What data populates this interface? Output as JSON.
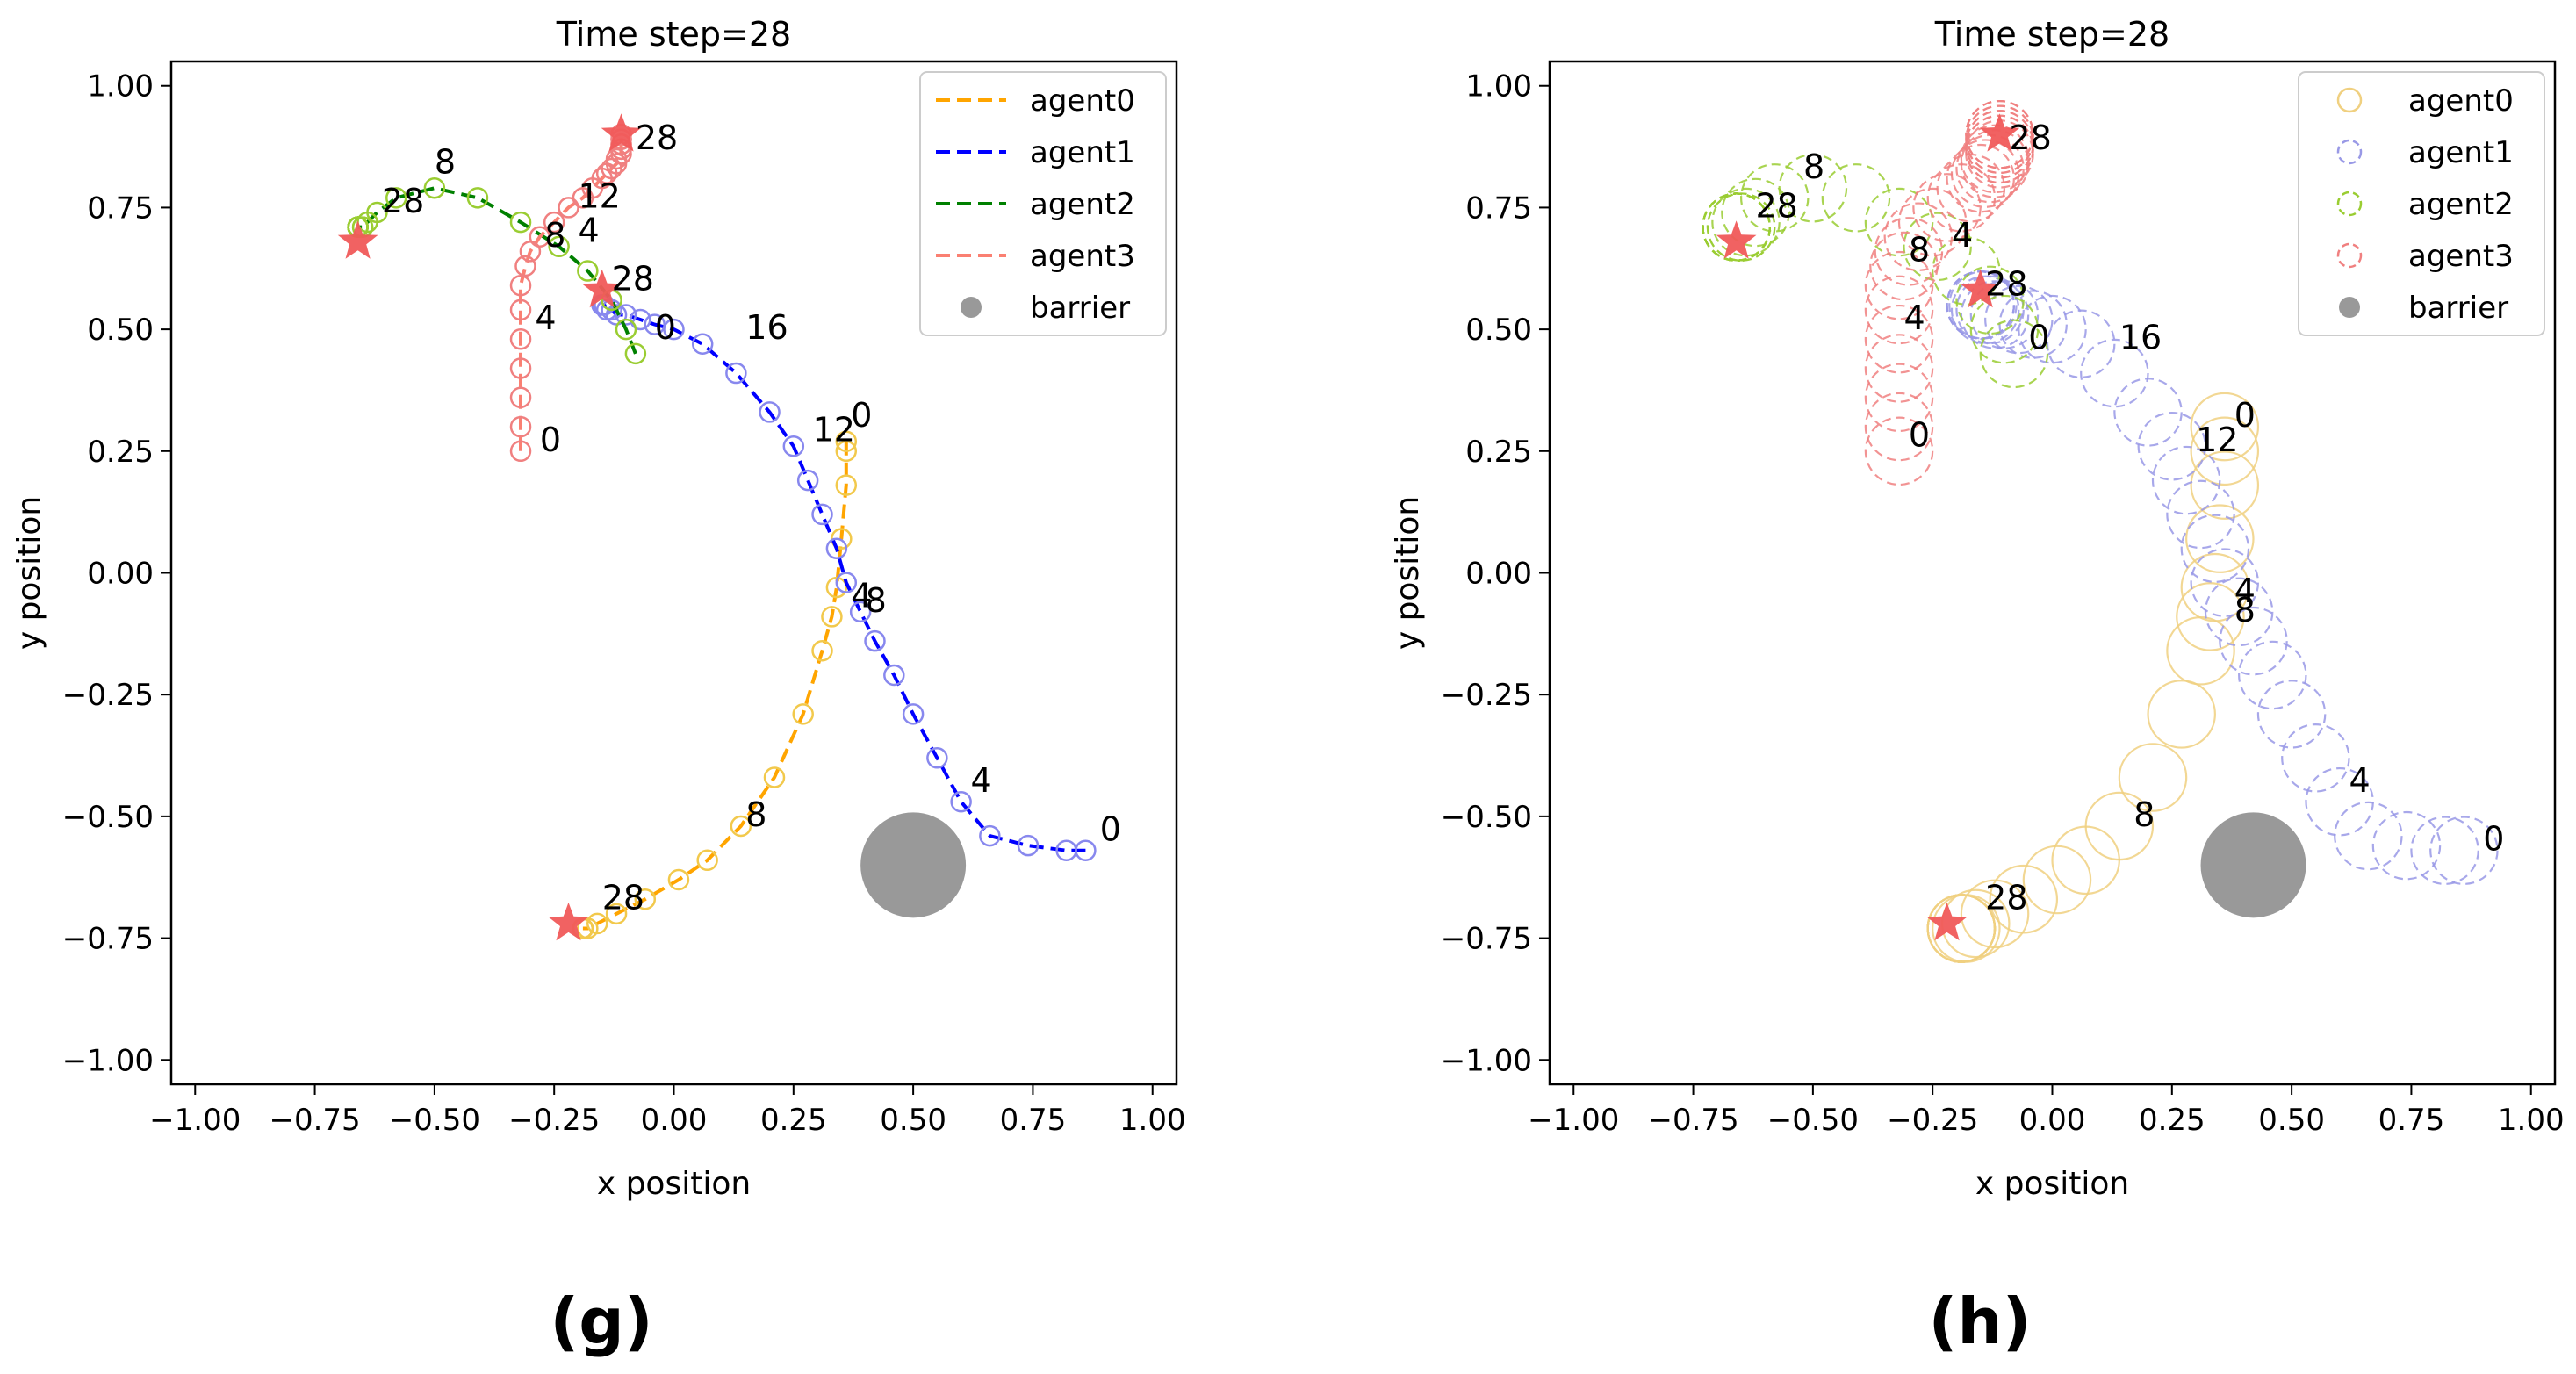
{
  "figure": {
    "captions": [
      "(g)",
      "(h)"
    ]
  },
  "chart_data": [
    {
      "type": "scatter",
      "title": "Time step=28",
      "xlabel": "x position",
      "ylabel": "y position",
      "xlim": [
        -1.05,
        1.05
      ],
      "ylim": [
        -1.05,
        1.05
      ],
      "xticks": [
        -1.0,
        -0.75,
        -0.5,
        -0.25,
        0.0,
        0.25,
        0.5,
        0.75,
        1.0
      ],
      "yticks": [
        -1.0,
        -0.75,
        -0.5,
        -0.25,
        0.0,
        0.25,
        0.5,
        0.75,
        1.0
      ],
      "xtick_labels": [
        "−1.00",
        "−0.75",
        "−0.50",
        "−0.25",
        "0.00",
        "0.25",
        "0.50",
        "0.75",
        "1.00"
      ],
      "ytick_labels": [
        "−1.00",
        "−0.75",
        "−0.50",
        "−0.25",
        "0.00",
        "0.25",
        "0.50",
        "0.75",
        "1.00"
      ],
      "grid": false,
      "legend_position": "top-right",
      "marker_style": "small circles on dashed path",
      "barrier": {
        "name": "barrier",
        "x": 0.5,
        "y": -0.6,
        "radius": 0.11,
        "color": "#999999"
      },
      "series": [
        {
          "name": "agent0",
          "color": "#FFA500",
          "marker_color": "#F2C94C",
          "x": [
            0.36,
            0.36,
            0.36,
            0.35,
            0.34,
            0.33,
            0.31,
            0.27,
            0.21,
            0.14,
            0.07,
            0.01,
            -0.06,
            -0.12,
            -0.16,
            -0.18,
            -0.19,
            -0.19,
            -0.19,
            -0.19,
            -0.19,
            -0.19,
            -0.19,
            -0.19,
            -0.19,
            -0.19,
            -0.19,
            -0.19,
            -0.19
          ],
          "y": [
            0.27,
            0.25,
            0.18,
            0.07,
            -0.03,
            -0.09,
            -0.16,
            -0.29,
            -0.42,
            -0.52,
            -0.59,
            -0.63,
            -0.67,
            -0.7,
            -0.72,
            -0.73,
            -0.73,
            -0.73,
            -0.73,
            -0.73,
            -0.73,
            -0.73,
            -0.73,
            -0.73,
            -0.73,
            -0.73,
            -0.73,
            -0.73,
            -0.73
          ]
        },
        {
          "name": "agent1",
          "color": "#0000FF",
          "marker_color": "#8888EE",
          "x": [
            0.86,
            0.82,
            0.74,
            0.66,
            0.6,
            0.55,
            0.5,
            0.46,
            0.42,
            0.39,
            0.36,
            0.34,
            0.31,
            0.28,
            0.25,
            0.2,
            0.13,
            0.06,
            0.0,
            -0.04,
            -0.07,
            -0.1,
            -0.12,
            -0.13,
            -0.14,
            -0.145,
            -0.15,
            -0.15,
            -0.15
          ],
          "y": [
            -0.57,
            -0.57,
            -0.56,
            -0.54,
            -0.47,
            -0.38,
            -0.29,
            -0.21,
            -0.14,
            -0.08,
            -0.02,
            0.05,
            0.12,
            0.19,
            0.26,
            0.33,
            0.41,
            0.47,
            0.5,
            0.51,
            0.52,
            0.53,
            0.53,
            0.54,
            0.54,
            0.55,
            0.55,
            0.55,
            0.55
          ]
        },
        {
          "name": "agent2",
          "color": "#008000",
          "marker_color": "#9ACD32",
          "x": [
            -0.08,
            -0.1,
            -0.13,
            -0.18,
            -0.24,
            -0.32,
            -0.41,
            -0.5,
            -0.58,
            -0.62,
            -0.64,
            -0.65,
            -0.65,
            -0.66,
            -0.66,
            -0.66,
            -0.66,
            -0.66,
            -0.66,
            -0.66,
            -0.66,
            -0.66,
            -0.66,
            -0.66,
            -0.66,
            -0.66,
            -0.66,
            -0.66,
            -0.66
          ],
          "y": [
            0.45,
            0.5,
            0.56,
            0.62,
            0.67,
            0.72,
            0.77,
            0.79,
            0.77,
            0.74,
            0.72,
            0.71,
            0.71,
            0.71,
            0.71,
            0.71,
            0.71,
            0.71,
            0.71,
            0.71,
            0.71,
            0.71,
            0.71,
            0.71,
            0.71,
            0.71,
            0.71,
            0.71,
            0.71
          ]
        },
        {
          "name": "agent3",
          "color": "#FA8072",
          "marker_color": "#F08080",
          "x": [
            -0.32,
            -0.32,
            -0.32,
            -0.32,
            -0.32,
            -0.32,
            -0.32,
            -0.31,
            -0.3,
            -0.28,
            -0.25,
            -0.22,
            -0.19,
            -0.17,
            -0.15,
            -0.14,
            -0.13,
            -0.12,
            -0.12,
            -0.11,
            -0.11,
            -0.11,
            -0.11,
            -0.11,
            -0.11,
            -0.11,
            -0.11,
            -0.11,
            -0.11
          ],
          "y": [
            0.25,
            0.3,
            0.36,
            0.42,
            0.48,
            0.54,
            0.59,
            0.63,
            0.66,
            0.69,
            0.72,
            0.75,
            0.77,
            0.79,
            0.81,
            0.82,
            0.83,
            0.84,
            0.85,
            0.86,
            0.87,
            0.87,
            0.88,
            0.88,
            0.89,
            0.89,
            0.9,
            0.9,
            0.9
          ]
        }
      ],
      "step_labels": [
        {
          "text": "0",
          "x": 0.37,
          "y": 0.3
        },
        {
          "text": "4",
          "x": 0.37,
          "y": -0.07
        },
        {
          "text": "8",
          "x": 0.15,
          "y": -0.52
        },
        {
          "text": "28",
          "x": -0.15,
          "y": -0.69
        },
        {
          "text": "0",
          "x": 0.89,
          "y": -0.55
        },
        {
          "text": "4",
          "x": 0.62,
          "y": -0.45
        },
        {
          "text": "8",
          "x": 0.4,
          "y": -0.08
        },
        {
          "text": "12",
          "x": 0.29,
          "y": 0.27
        },
        {
          "text": "16",
          "x": 0.15,
          "y": 0.48
        },
        {
          "text": "0",
          "x": -0.04,
          "y": 0.48
        },
        {
          "text": "4",
          "x": -0.2,
          "y": 0.68
        },
        {
          "text": "8",
          "x": -0.5,
          "y": 0.82
        },
        {
          "text": "28",
          "x": -0.61,
          "y": 0.74
        },
        {
          "text": "0",
          "x": -0.28,
          "y": 0.25
        },
        {
          "text": "4",
          "x": -0.29,
          "y": 0.5
        },
        {
          "text": "8",
          "x": -0.27,
          "y": 0.67
        },
        {
          "text": "12",
          "x": -0.2,
          "y": 0.75
        },
        {
          "text": "28",
          "x": -0.08,
          "y": 0.87
        },
        {
          "text": "28",
          "x": -0.13,
          "y": 0.58
        }
      ],
      "final_markers": [
        {
          "x": -0.22,
          "y": -0.72
        },
        {
          "x": -0.66,
          "y": 0.68
        },
        {
          "x": -0.15,
          "y": 0.58
        },
        {
          "x": -0.11,
          "y": 0.9
        }
      ],
      "legend": [
        "agent0",
        "agent1",
        "agent2",
        "agent3",
        "barrier"
      ]
    },
    {
      "type": "scatter",
      "title": "Time step=28",
      "xlabel": "x position",
      "ylabel": "y position",
      "xlim": [
        -1.05,
        1.05
      ],
      "ylim": [
        -1.05,
        1.05
      ],
      "xticks": [
        -1.0,
        -0.75,
        -0.5,
        -0.25,
        0.0,
        0.25,
        0.5,
        0.75,
        1.0
      ],
      "yticks": [
        -1.0,
        -0.75,
        -0.5,
        -0.25,
        0.0,
        0.25,
        0.5,
        0.75,
        1.0
      ],
      "xtick_labels": [
        "−1.00",
        "−0.75",
        "−0.50",
        "−0.25",
        "0.00",
        "0.25",
        "0.50",
        "0.75",
        "1.00"
      ],
      "ytick_labels": [
        "−1.00",
        "−0.75",
        "−0.50",
        "−0.25",
        "0.00",
        "0.25",
        "0.50",
        "0.75",
        "1.00"
      ],
      "grid": false,
      "legend_position": "top-right",
      "marker_style": "large hollow circles (safety radius)",
      "barrier": {
        "name": "barrier",
        "x": 0.42,
        "y": -0.6,
        "radius": 0.11,
        "color": "#999999"
      },
      "series": [
        {
          "name": "agent0",
          "color": "#F0D080",
          "dash": false,
          "x": [
            0.36,
            0.36,
            0.36,
            0.35,
            0.34,
            0.33,
            0.31,
            0.27,
            0.21,
            0.14,
            0.07,
            0.01,
            -0.06,
            -0.12,
            -0.16,
            -0.18,
            -0.19,
            -0.19,
            -0.19,
            -0.19,
            -0.19,
            -0.19,
            -0.19,
            -0.19,
            -0.19,
            -0.19,
            -0.19,
            -0.19,
            -0.19
          ],
          "y": [
            0.3,
            0.25,
            0.18,
            0.07,
            -0.03,
            -0.09,
            -0.16,
            -0.29,
            -0.42,
            -0.52,
            -0.59,
            -0.63,
            -0.67,
            -0.7,
            -0.72,
            -0.73,
            -0.73,
            -0.73,
            -0.73,
            -0.73,
            -0.73,
            -0.73,
            -0.73,
            -0.73,
            -0.73,
            -0.73,
            -0.73,
            -0.73,
            -0.73
          ]
        },
        {
          "name": "agent1",
          "color": "#9999E6",
          "dash": true,
          "x": [
            0.86,
            0.82,
            0.74,
            0.66,
            0.6,
            0.55,
            0.5,
            0.46,
            0.42,
            0.39,
            0.36,
            0.34,
            0.31,
            0.28,
            0.25,
            0.2,
            0.13,
            0.06,
            0.0,
            -0.04,
            -0.07,
            -0.1,
            -0.12,
            -0.13,
            -0.14,
            -0.145,
            -0.15,
            -0.15,
            -0.15
          ],
          "y": [
            -0.57,
            -0.57,
            -0.56,
            -0.54,
            -0.47,
            -0.38,
            -0.29,
            -0.21,
            -0.14,
            -0.08,
            -0.02,
            0.05,
            0.12,
            0.19,
            0.26,
            0.33,
            0.41,
            0.47,
            0.5,
            0.51,
            0.52,
            0.53,
            0.53,
            0.54,
            0.54,
            0.55,
            0.55,
            0.55,
            0.55
          ]
        },
        {
          "name": "agent2",
          "color": "#9ACD32",
          "dash": true,
          "x": [
            -0.08,
            -0.1,
            -0.13,
            -0.18,
            -0.24,
            -0.32,
            -0.41,
            -0.5,
            -0.58,
            -0.62,
            -0.64,
            -0.65,
            -0.65,
            -0.66,
            -0.66,
            -0.66,
            -0.66,
            -0.66,
            -0.66,
            -0.66,
            -0.66,
            -0.66,
            -0.66,
            -0.66,
            -0.66,
            -0.66,
            -0.66,
            -0.66,
            -0.66
          ],
          "y": [
            0.45,
            0.5,
            0.56,
            0.62,
            0.67,
            0.72,
            0.77,
            0.79,
            0.77,
            0.74,
            0.72,
            0.71,
            0.71,
            0.71,
            0.71,
            0.71,
            0.71,
            0.71,
            0.71,
            0.71,
            0.71,
            0.71,
            0.71,
            0.71,
            0.71,
            0.71,
            0.71,
            0.71,
            0.71
          ]
        },
        {
          "name": "agent3",
          "color": "#F08080",
          "dash": true,
          "x": [
            -0.32,
            -0.32,
            -0.32,
            -0.32,
            -0.32,
            -0.32,
            -0.32,
            -0.31,
            -0.3,
            -0.28,
            -0.25,
            -0.22,
            -0.19,
            -0.17,
            -0.15,
            -0.14,
            -0.13,
            -0.12,
            -0.12,
            -0.11,
            -0.11,
            -0.11,
            -0.11,
            -0.11,
            -0.11,
            -0.11,
            -0.11,
            -0.11,
            -0.11
          ],
          "y": [
            0.25,
            0.3,
            0.36,
            0.42,
            0.48,
            0.54,
            0.59,
            0.63,
            0.66,
            0.69,
            0.72,
            0.75,
            0.77,
            0.79,
            0.81,
            0.82,
            0.83,
            0.84,
            0.85,
            0.86,
            0.87,
            0.87,
            0.88,
            0.88,
            0.89,
            0.89,
            0.9,
            0.9,
            0.9
          ]
        }
      ],
      "step_labels": [
        {
          "text": "0",
          "x": 0.38,
          "y": 0.3
        },
        {
          "text": "4",
          "x": 0.38,
          "y": -0.06
        },
        {
          "text": "8",
          "x": 0.38,
          "y": -0.1
        },
        {
          "text": "8",
          "x": 0.17,
          "y": -0.52
        },
        {
          "text": "28",
          "x": -0.14,
          "y": -0.69
        },
        {
          "text": "0",
          "x": 0.9,
          "y": -0.57
        },
        {
          "text": "4",
          "x": 0.62,
          "y": -0.45
        },
        {
          "text": "12",
          "x": 0.3,
          "y": 0.25
        },
        {
          "text": "16",
          "x": 0.14,
          "y": 0.46
        },
        {
          "text": "0",
          "x": -0.05,
          "y": 0.46
        },
        {
          "text": "8",
          "x": -0.52,
          "y": 0.81
        },
        {
          "text": "28",
          "x": -0.62,
          "y": 0.73
        },
        {
          "text": "0",
          "x": -0.3,
          "y": 0.26
        },
        {
          "text": "4",
          "x": -0.31,
          "y": 0.5
        },
        {
          "text": "4",
          "x": -0.21,
          "y": 0.67
        },
        {
          "text": "8",
          "x": -0.3,
          "y": 0.64
        },
        {
          "text": "28",
          "x": -0.09,
          "y": 0.87
        },
        {
          "text": "28",
          "x": -0.14,
          "y": 0.57
        }
      ],
      "final_markers": [
        {
          "x": -0.22,
          "y": -0.72
        },
        {
          "x": -0.66,
          "y": 0.68
        },
        {
          "x": -0.15,
          "y": 0.58
        },
        {
          "x": -0.11,
          "y": 0.9
        }
      ],
      "legend": [
        "agent0",
        "agent1",
        "agent2",
        "agent3",
        "barrier"
      ]
    }
  ]
}
